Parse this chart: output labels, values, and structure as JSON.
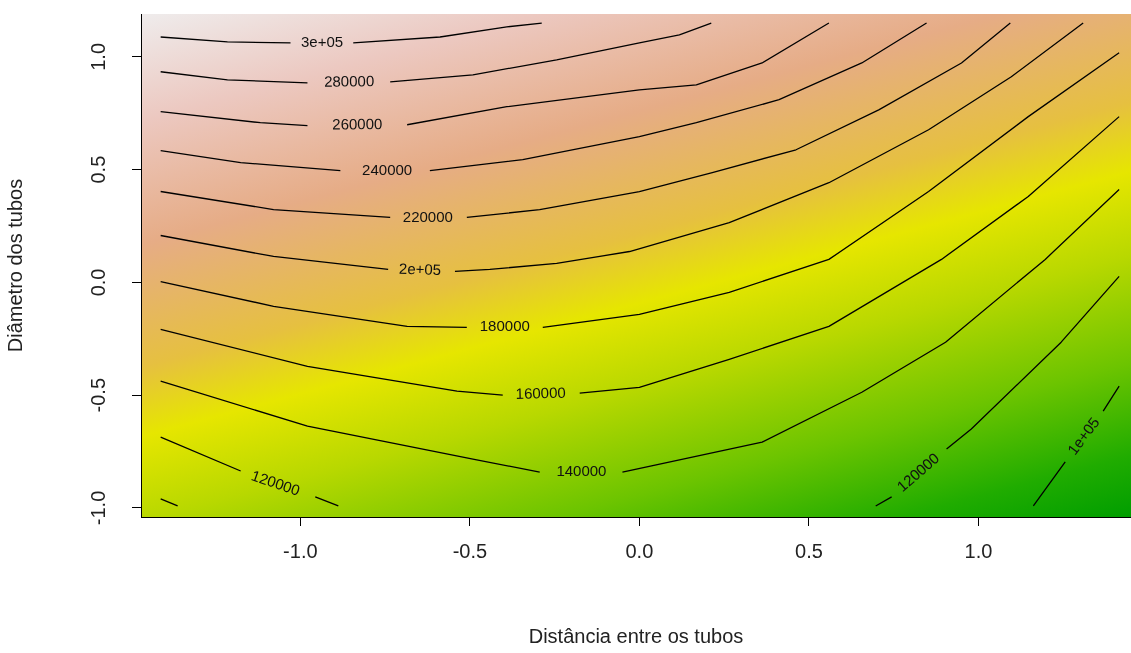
{
  "chart_data": {
    "type": "line",
    "xlabel": "Distância entre os tubos",
    "ylabel": "Diâmetro dos tubos",
    "xlim": [
      -1.47,
      1.45
    ],
    "ylim": [
      -1.04,
      1.19
    ],
    "xticks": [
      {
        "value": -1,
        "label": "-1.0"
      },
      {
        "value": -0.5,
        "label": "-0.5"
      },
      {
        "value": 0,
        "label": "0.0"
      },
      {
        "value": 0.5,
        "label": "0.5"
      },
      {
        "value": 1,
        "label": "1.0"
      }
    ],
    "yticks": [
      {
        "value": -1,
        "label": "-1.0"
      },
      {
        "value": -0.5,
        "label": "-0.5"
      },
      {
        "value": 0,
        "label": "0.0"
      },
      {
        "value": 0.5,
        "label": "0.5"
      },
      {
        "value": 1,
        "label": "1.0"
      }
    ],
    "grid": false,
    "legend": false,
    "marker": "none",
    "line_style": "solid",
    "series": [
      {
        "name": "3e+05",
        "color": "#000000",
        "x": [
          -1.412,
          -1.215,
          -1.029,
          -0.936,
          -0.844,
          -0.588,
          -0.391,
          -0.288
        ],
        "values": [
          1.088,
          1.066,
          1.062,
          null,
          1.062,
          1.088,
          1.133,
          1.15
        ]
      },
      {
        "name": "280000",
        "color": "#000000",
        "x": [
          -1.412,
          -1.215,
          -0.979,
          -0.856,
          -0.735,
          -0.491,
          -0.244,
          0,
          0.118,
          0.212
        ],
        "values": [
          0.934,
          0.898,
          0.885,
          null,
          0.889,
          0.92,
          0.987,
          1.062,
          1.097,
          1.15
        ]
      },
      {
        "name": "260000",
        "color": "#000000",
        "x": [
          -1.412,
          -1.118,
          -0.979,
          -0.832,
          -0.685,
          -0.391,
          0,
          0.168,
          0.362,
          0.559
        ],
        "values": [
          0.757,
          0.708,
          0.695,
          null,
          0.699,
          0.779,
          0.854,
          0.876,
          0.973,
          1.15
        ]
      },
      {
        "name": "240000",
        "color": "#000000",
        "x": [
          -1.412,
          -1.176,
          -0.882,
          -0.744,
          -0.618,
          -0.344,
          0,
          0.168,
          0.412,
          0.656,
          0.847
        ],
        "values": [
          0.584,
          0.531,
          0.496,
          null,
          0.496,
          0.544,
          0.646,
          0.708,
          0.81,
          0.973,
          1.15
        ]
      },
      {
        "name": "220000",
        "color": "#000000",
        "x": [
          -1.412,
          -1.079,
          -0.735,
          -0.624,
          -0.509,
          -0.294,
          0,
          0.215,
          0.462,
          0.706,
          0.95,
          1.094
        ],
        "values": [
          0.403,
          0.323,
          0.288,
          null,
          0.288,
          0.323,
          0.403,
          0.487,
          0.588,
          0.765,
          0.973,
          1.15
        ]
      },
      {
        "name": "2e+05",
        "color": "#000000",
        "x": [
          -1.412,
          -1.079,
          -0.741,
          -0.647,
          -0.544,
          -0.441,
          -0.244,
          -0.029,
          0.265,
          0.559,
          0.853,
          1.097,
          1.309
        ],
        "values": [
          0.208,
          0.115,
          0.058,
          null,
          0.049,
          0.058,
          0.084,
          0.137,
          0.265,
          0.442,
          0.677,
          0.912,
          1.15
        ]
      },
      {
        "name": "180000",
        "color": "#000000",
        "x": [
          -1.412,
          -1.079,
          -0.685,
          -0.509,
          -0.397,
          -0.285,
          0,
          0.265,
          0.559,
          0.853,
          1.147,
          1.415
        ],
        "values": [
          0.004,
          -0.106,
          -0.195,
          -0.199,
          null,
          -0.199,
          -0.142,
          -0.044,
          0.102,
          0.403,
          0.735,
          1.018
        ]
      },
      {
        "name": "160000",
        "color": "#000000",
        "x": [
          -1.412,
          -0.979,
          -0.538,
          -0.403,
          -0.291,
          -0.176,
          0,
          0.265,
          0.559,
          0.891,
          1.147,
          1.415
        ],
        "values": [
          -0.208,
          -0.372,
          -0.482,
          -0.5,
          null,
          -0.491,
          -0.465,
          -0.341,
          -0.195,
          0.102,
          0.381,
          0.735
        ]
      },
      {
        "name": "140000",
        "color": "#000000",
        "x": [
          -1.412,
          -0.979,
          -0.491,
          -0.294,
          -0.171,
          -0.05,
          0.362,
          0.656,
          0.903,
          1.197,
          1.415
        ],
        "values": [
          -0.438,
          -0.637,
          -0.783,
          -0.841,
          null,
          -0.841,
          -0.708,
          -0.487,
          -0.265,
          0.102,
          0.412
        ]
      },
      {
        "name": "120000",
        "color": "#000000",
        "x": [
          -1.412,
          -1.176,
          -1.074,
          -0.956,
          -0.888
        ],
        "values": [
          -0.686,
          -0.836,
          null,
          -0.951,
          -0.991
        ]
      },
      {
        "name": "120000",
        "color": "#000000",
        "x": [
          0.697,
          0.744,
          0.824,
          0.906,
          0.979,
          1.244,
          1.415
        ],
        "values": [
          -0.991,
          -0.951,
          null,
          -0.739,
          -0.65,
          -0.265,
          0.027
        ]
      },
      {
        "name": "1e+05",
        "color": "#000000",
        "x": [
          1.162,
          1.256,
          1.312,
          1.368,
          1.415
        ],
        "values": [
          -0.991,
          -0.796,
          null,
          -0.571,
          -0.46
        ]
      },
      {
        "color": "#000000",
        "x": [
          -1.412,
          -1.362
        ],
        "values": [
          -0.96,
          -0.991
        ]
      }
    ]
  }
}
